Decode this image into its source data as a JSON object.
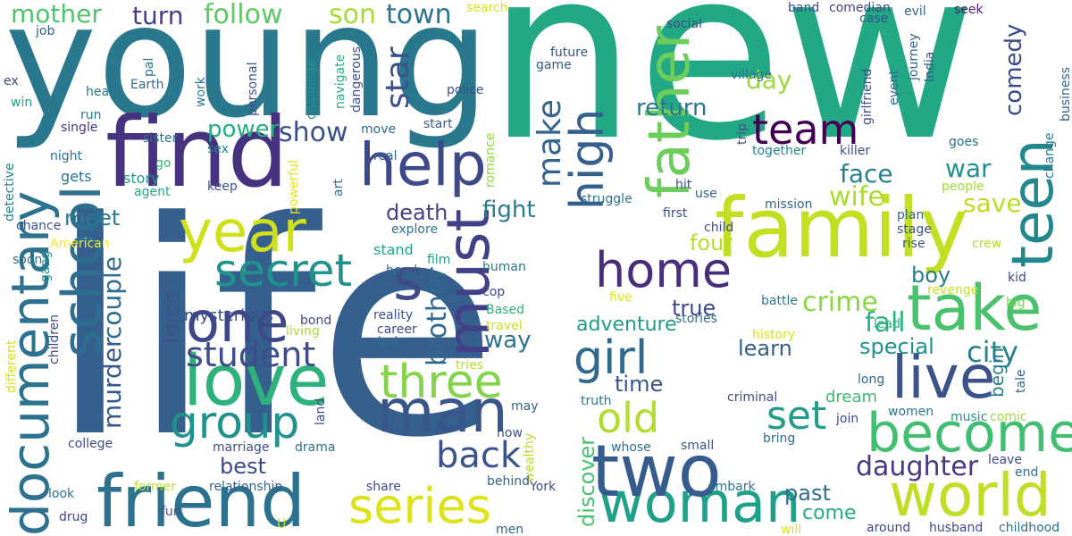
{
  "words": [
    {
      "text": "new",
      "color": "#22a884"
    },
    {
      "text": "life",
      "color": "#355f8d"
    },
    {
      "text": "young",
      "color": "#2a788e"
    },
    {
      "text": "find",
      "color": "#46327e"
    },
    {
      "text": "family",
      "color": "#c2df23"
    },
    {
      "text": "documentary",
      "color": "#2c728e"
    },
    {
      "text": "year",
      "color": "#d0e11c"
    },
    {
      "text": "love",
      "color": "#2db27d"
    },
    {
      "text": "friend",
      "color": "#2c728e"
    },
    {
      "text": "world",
      "color": "#bddf26"
    },
    {
      "text": "woman",
      "color": "#1fa088"
    },
    {
      "text": "two",
      "color": "#365c8d"
    },
    {
      "text": "man",
      "color": "#39568c"
    },
    {
      "text": "take",
      "color": "#4ac16d"
    },
    {
      "text": "father",
      "color": "#6ccd5a"
    },
    {
      "text": "teen",
      "color": "#23888e"
    },
    {
      "text": "become",
      "color": "#42be71"
    },
    {
      "text": "live",
      "color": "#3b528b"
    },
    {
      "text": "school",
      "color": "#2e6f8e"
    },
    {
      "text": "help",
      "color": "#3e4989"
    },
    {
      "text": "one",
      "color": "#3f4788"
    },
    {
      "text": "must",
      "color": "#424086"
    },
    {
      "text": "secret",
      "color": "#20938c"
    },
    {
      "text": "three",
      "color": "#84d44b"
    },
    {
      "text": "home",
      "color": "#472d7b"
    },
    {
      "text": "group",
      "color": "#21918c"
    },
    {
      "text": "series",
      "color": "#dde318"
    },
    {
      "text": "girl",
      "color": "#31688e"
    },
    {
      "text": "high",
      "color": "#355f8d"
    },
    {
      "text": "old",
      "color": "#b0dd2f"
    },
    {
      "text": "set",
      "color": "#1f9e89"
    },
    {
      "text": "team",
      "color": "#440154"
    },
    {
      "text": "back",
      "color": "#3b528b"
    },
    {
      "text": "student",
      "color": "#3e4c8a"
    },
    {
      "text": "s",
      "color": "#3e4a89"
    },
    {
      "text": "make",
      "color": "#33638d"
    },
    {
      "text": "brother",
      "color": "#31688e"
    },
    {
      "text": "murder",
      "color": "#38598c"
    },
    {
      "text": "couple",
      "color": "#2f6c8e"
    },
    {
      "text": "daughter",
      "color": "#443a83"
    },
    {
      "text": "show",
      "color": "#3b528b"
    },
    {
      "text": "city",
      "color": "#26828e"
    },
    {
      "text": "fall",
      "color": "#2eb37c"
    },
    {
      "text": "crime",
      "color": "#8bd646"
    },
    {
      "text": "face",
      "color": "#26828e"
    },
    {
      "text": "wife",
      "color": "#addc30"
    },
    {
      "text": "save",
      "color": "#bade28"
    },
    {
      "text": "war",
      "color": "#21918c"
    },
    {
      "text": "star",
      "color": "#3b528b"
    },
    {
      "text": "town",
      "color": "#2c738e"
    },
    {
      "text": "follow",
      "color": "#5ec962"
    },
    {
      "text": "turn",
      "color": "#433e85"
    },
    {
      "text": "mother",
      "color": "#50c46a"
    },
    {
      "text": "son",
      "color": "#a8db34"
    },
    {
      "text": "day",
      "color": "#9bd93c"
    },
    {
      "text": "return",
      "color": "#2a788e"
    },
    {
      "text": "comedy",
      "color": "#3e4989"
    },
    {
      "text": "power",
      "color": "#26ad81"
    },
    {
      "text": "meet",
      "color": "#2a788e"
    },
    {
      "text": "death",
      "color": "#414487"
    },
    {
      "text": "fight",
      "color": "#287c8e"
    },
    {
      "text": "four",
      "color": "#b5de2b"
    },
    {
      "text": "boy",
      "color": "#277f8e"
    },
    {
      "text": "force",
      "color": "#3a548c"
    },
    {
      "text": "true",
      "color": "#3f4889"
    },
    {
      "text": "way",
      "color": "#2c728e"
    },
    {
      "text": "adventure",
      "color": "#1e9b8a"
    },
    {
      "text": "special",
      "color": "#21918c"
    },
    {
      "text": "learn",
      "color": "#355f8d"
    },
    {
      "text": "best",
      "color": "#3e4989"
    },
    {
      "text": "past",
      "color": "#2e6e8e"
    },
    {
      "text": "come",
      "color": "#25ab82"
    },
    {
      "text": "time",
      "color": "#3b528b"
    },
    {
      "text": "discover",
      "color": "#48c16e"
    },
    {
      "text": "mysterious",
      "color": "#3d4d8a"
    },
    {
      "text": "dream",
      "color": "#3aba76"
    },
    {
      "text": "begin",
      "color": "#277f8e"
    },
    {
      "text": "story",
      "color": "#1f9a8a"
    },
    {
      "text": "gets",
      "color": "#2c738e"
    },
    {
      "text": "stand",
      "color": "#20a486"
    },
    {
      "text": "explore",
      "color": "#2d718e"
    },
    {
      "text": "film",
      "color": "#1e9c89"
    },
    {
      "text": "head",
      "color": "#31688e"
    },
    {
      "text": "cop",
      "color": "#3e4a89"
    },
    {
      "text": "human",
      "color": "#2a778e"
    },
    {
      "text": "police",
      "color": "#3e4c8a"
    },
    {
      "text": "start",
      "color": "#355e8d"
    },
    {
      "text": "struggle",
      "color": "#2c728e"
    },
    {
      "text": "village",
      "color": "#2a768e"
    },
    {
      "text": "future",
      "color": "#39568c"
    },
    {
      "text": "game",
      "color": "#38598c"
    },
    {
      "text": "social",
      "color": "#3e4a89"
    },
    {
      "text": "search",
      "color": "#dae319"
    },
    {
      "text": "band",
      "color": "#3d4e8a"
    },
    {
      "text": "comedian",
      "color": "#433d84"
    },
    {
      "text": "case",
      "color": "#3b528b"
    },
    {
      "text": "evil",
      "color": "#33638d"
    },
    {
      "text": "seek",
      "color": "#481f70"
    },
    {
      "text": "job",
      "color": "#34608d"
    },
    {
      "text": "pal",
      "color": "#2c728e"
    },
    {
      "text": "work",
      "color": "#2a778e"
    },
    {
      "text": "personal",
      "color": "#3d4e8a"
    },
    {
      "text": "challenge",
      "color": "#21918c"
    },
    {
      "text": "navigate",
      "color": "#27ad81"
    },
    {
      "text": "dangerous",
      "color": "#3e4c8a"
    },
    {
      "text": "Earth",
      "color": "#31688e"
    },
    {
      "text": "heart",
      "color": "#2b758e"
    },
    {
      "text": "ex",
      "color": "#3f4788"
    },
    {
      "text": "win",
      "color": "#1fa088"
    },
    {
      "text": "run",
      "color": "#2b748e"
    },
    {
      "text": "single",
      "color": "#46337e"
    },
    {
      "text": "sister",
      "color": "#2d718e"
    },
    {
      "text": "move",
      "color": "#31688e"
    },
    {
      "text": "sex",
      "color": "#25848e"
    },
    {
      "text": "night",
      "color": "#2e6e8e"
    },
    {
      "text": "go",
      "color": "#36b677"
    },
    {
      "text": "agent",
      "color": "#22a785"
    },
    {
      "text": "keep",
      "color": "#3b528b"
    },
    {
      "text": "powerful",
      "color": "#e5e419"
    },
    {
      "text": "art",
      "color": "#2d708e"
    },
    {
      "text": "real",
      "color": "#34618d"
    },
    {
      "text": "romance",
      "color": "#93d741"
    },
    {
      "text": "hit",
      "color": "#3e4a89"
    },
    {
      "text": "use",
      "color": "#355f8d"
    },
    {
      "text": "first",
      "color": "#3e4989"
    },
    {
      "text": "child",
      "color": "#3e4c8a"
    },
    {
      "text": "mission",
      "color": "#31678e"
    },
    {
      "text": "trip",
      "color": "#3b528b"
    },
    {
      "text": "together",
      "color": "#24868e"
    },
    {
      "text": "killer",
      "color": "#3d4e8a"
    },
    {
      "text": "girlfriend",
      "color": "#3e4c8a"
    },
    {
      "text": "event",
      "color": "#31688e"
    },
    {
      "text": "journey",
      "color": "#34618d"
    },
    {
      "text": "India",
      "color": "#39568c"
    },
    {
      "text": "goes",
      "color": "#2c728e"
    },
    {
      "text": "people",
      "color": "#a2da37"
    },
    {
      "text": "change",
      "color": "#2a788e"
    },
    {
      "text": "business",
      "color": "#34618d"
    },
    {
      "text": "detective",
      "color": "#26818e"
    },
    {
      "text": "chance",
      "color": "#3a548c"
    },
    {
      "text": "American",
      "color": "#fde725"
    },
    {
      "text": "soon",
      "color": "#2e6e8e"
    },
    {
      "text": "gang",
      "color": "#21918c"
    },
    {
      "text": "children",
      "color": "#3f4788"
    },
    {
      "text": "different",
      "color": "#d8e219"
    },
    {
      "text": "Based",
      "color": "#2fb47c"
    },
    {
      "text": "bond",
      "color": "#3e4a89"
    },
    {
      "text": "living",
      "color": "#addc30"
    },
    {
      "text": "reality",
      "color": "#3b528b"
    },
    {
      "text": "travel",
      "color": "#c8e020"
    },
    {
      "text": "career",
      "color": "#3e4989"
    },
    {
      "text": "dark",
      "color": "#2d708e"
    },
    {
      "text": "tries",
      "color": "#b8de29"
    },
    {
      "text": "land",
      "color": "#3e4a89"
    },
    {
      "text": "may",
      "color": "#34618d"
    },
    {
      "text": "now",
      "color": "#3b528b"
    },
    {
      "text": "wealthy",
      "color": "#b5de2b"
    },
    {
      "text": "whose",
      "color": "#2e6e8e"
    },
    {
      "text": "truth",
      "color": "#2a788e"
    },
    {
      "text": "small",
      "color": "#3b528b"
    },
    {
      "text": "history",
      "color": "#d5e21a"
    },
    {
      "text": "criminal",
      "color": "#3e4989"
    },
    {
      "text": "bring",
      "color": "#31688e"
    },
    {
      "text": "stories",
      "color": "#2e6e8e"
    },
    {
      "text": "five",
      "color": "#e2e418"
    },
    {
      "text": "battle",
      "color": "#2a788e"
    },
    {
      "text": "plan",
      "color": "#34618d"
    },
    {
      "text": "stage",
      "color": "#3b528b"
    },
    {
      "text": "rise",
      "color": "#39568c"
    },
    {
      "text": "crew",
      "color": "#b8de29"
    },
    {
      "text": "kid",
      "color": "#3e4989"
    },
    {
      "text": "big",
      "color": "#7ad151"
    },
    {
      "text": "revenge",
      "color": "#c5e021"
    },
    {
      "text": "lead",
      "color": "#2db27d"
    },
    {
      "text": "long",
      "color": "#31688e"
    },
    {
      "text": "tale",
      "color": "#34618d"
    },
    {
      "text": "join",
      "color": "#3e4a89"
    },
    {
      "text": "women",
      "color": "#2a788e"
    },
    {
      "text": "music",
      "color": "#21918c"
    },
    {
      "text": "comic",
      "color": "#9fda3a"
    },
    {
      "text": "leave",
      "color": "#3e4989"
    },
    {
      "text": "end",
      "color": "#2e6e8e"
    },
    {
      "text": "college",
      "color": "#3e4a89"
    },
    {
      "text": "marriage",
      "color": "#3b528b"
    },
    {
      "text": "drama",
      "color": "#2e6e8e"
    },
    {
      "text": "relationship",
      "color": "#34618d"
    },
    {
      "text": "look",
      "color": "#2d708e"
    },
    {
      "text": "former",
      "color": "#bade28"
    },
    {
      "text": "drug",
      "color": "#3e4989"
    },
    {
      "text": "fun",
      "color": "#3b528b"
    },
    {
      "text": "share",
      "color": "#3e4a89"
    },
    {
      "text": "behind",
      "color": "#34618d"
    },
    {
      "text": "York",
      "color": "#3e4c8a"
    },
    {
      "text": "men",
      "color": "#31688e"
    },
    {
      "text": "U",
      "color": "#c5e021"
    },
    {
      "text": "will",
      "color": "#dde318"
    },
    {
      "text": "embark",
      "color": "#2a788e"
    },
    {
      "text": "around",
      "color": "#3e4989"
    },
    {
      "text": "husband",
      "color": "#3e4a89"
    },
    {
      "text": "childhood",
      "color": "#2e6e8e"
    }
  ]
}
